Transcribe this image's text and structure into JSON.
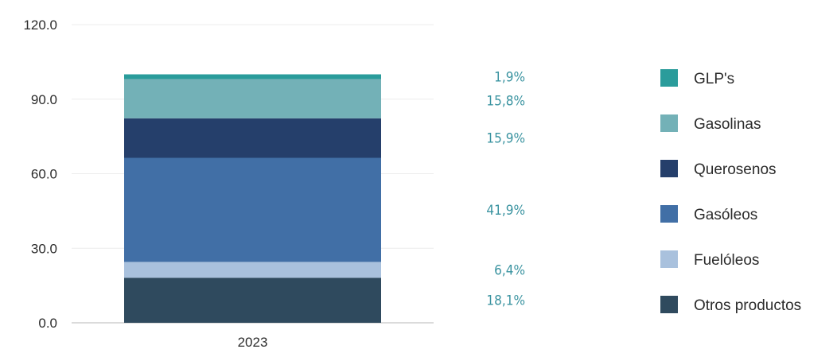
{
  "chart_data": {
    "type": "bar",
    "stacked": true,
    "categories": [
      "2023"
    ],
    "ylim": [
      0,
      120
    ],
    "yticks": [
      "0.0",
      "30.0",
      "60.0",
      "90.0",
      "120.0"
    ],
    "ytick_values": [
      0,
      30,
      60,
      90,
      120
    ],
    "grid": true,
    "legend_position": "right",
    "series": [
      {
        "name": "Otros productos",
        "values": [
          18.1
        ],
        "label": "18,1%",
        "color": "#2f4a5e"
      },
      {
        "name": "Fuelóleos",
        "values": [
          6.4
        ],
        "label": "6,4%",
        "color": "#a9c1dd"
      },
      {
        "name": "Gasóleos",
        "values": [
          41.9
        ],
        "label": "41,9%",
        "color": "#416fa6"
      },
      {
        "name": "Querosenos",
        "values": [
          15.9
        ],
        "label": "15,9%",
        "color": "#253f6b"
      },
      {
        "name": "Gasolinas",
        "values": [
          15.8
        ],
        "label": "15,8%",
        "color": "#73b1b7"
      },
      {
        "name": "GLP's",
        "values": [
          1.9
        ],
        "label": "1,9%",
        "color": "#2a9c9b"
      }
    ],
    "legend_order": [
      "GLP's",
      "Gasolinas",
      "Querosenos",
      "Gasóleos",
      "Fuelóleos",
      "Otros productos"
    ]
  }
}
